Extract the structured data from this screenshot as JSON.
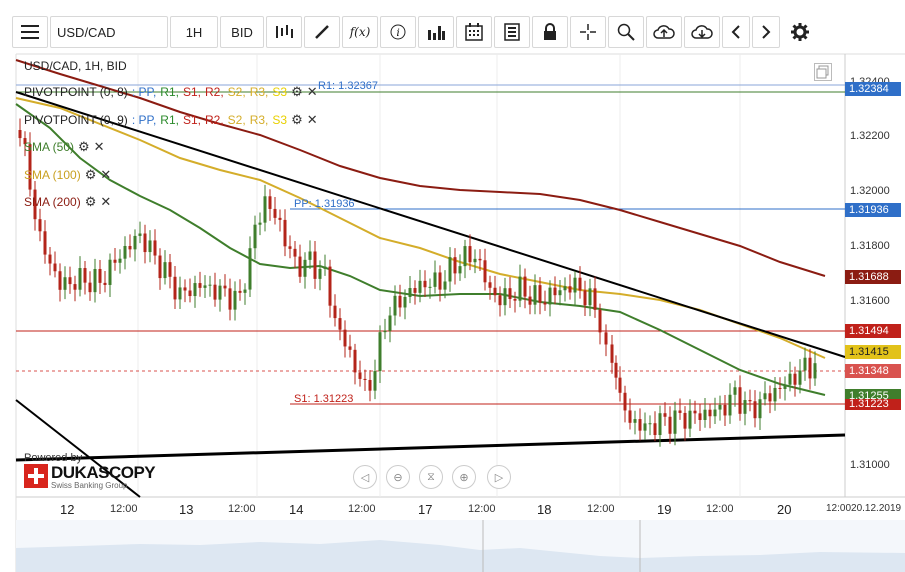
{
  "toolbar": {
    "symbol": "USD/CAD",
    "timeframe": "1H",
    "price_side": "BID"
  },
  "legend": {
    "title": "USD/CAD, 1H, BID",
    "pivot1": {
      "name": "PIVOTPOINT (0, 8)",
      "parts": [
        ": PP,",
        "R1,",
        "S1,",
        "R2,",
        "S2,",
        "R3,",
        "S3"
      ]
    },
    "pivot2": {
      "name": "PIVOTPOINT (0, 9)",
      "parts": [
        ": PP,",
        "R1,",
        "S1,",
        "R2,",
        "S2,",
        "R3,",
        "S3"
      ]
    },
    "sma50": "SMA (50)",
    "sma100": "SMA (100)",
    "sma200": "SMA (200)"
  },
  "annotations": {
    "r1": "R1: 1.32367",
    "pp": "PP: 1.31936",
    "s1": "S1: 1.31223"
  },
  "price_tags": [
    {
      "text": "1.32384",
      "color": "#2f6fc8"
    },
    {
      "text": "1.31936",
      "color": "#2f6fc8"
    },
    {
      "text": "1.31688",
      "color": "#8b1c12"
    },
    {
      "text": "1.31494",
      "color": "#c0211a"
    },
    {
      "text": "1.31415",
      "color": "#d4b000"
    },
    {
      "text": "1.31348",
      "color": "#d9534f"
    },
    {
      "text": "1.31255",
      "color": "#3f7e2c"
    },
    {
      "text": "1.31223",
      "color": "#c0211a"
    }
  ],
  "y_axis": [
    "1.32400",
    "1.32200",
    "1.32000",
    "1.31800",
    "1.31600",
    "1.31000"
  ],
  "x_axis": {
    "days": [
      "12",
      "13",
      "14",
      "17",
      "18",
      "19",
      "20"
    ],
    "times": [
      "12:00",
      "12:00",
      "12:00",
      "12:00",
      "12:00",
      "12:00"
    ],
    "last_label": "12:0020.12.2019"
  },
  "branding": {
    "powered_by": "Powered by",
    "name": "DUKASCOPY",
    "subtitle": "Swiss Banking Group"
  },
  "colors": {
    "sma50": "#3f7e2c",
    "sma100": "#d4ad2a",
    "sma200": "#8b1c12",
    "trend": "#000000",
    "bull": "#3f7e2c",
    "bear": "#b3241a"
  }
}
